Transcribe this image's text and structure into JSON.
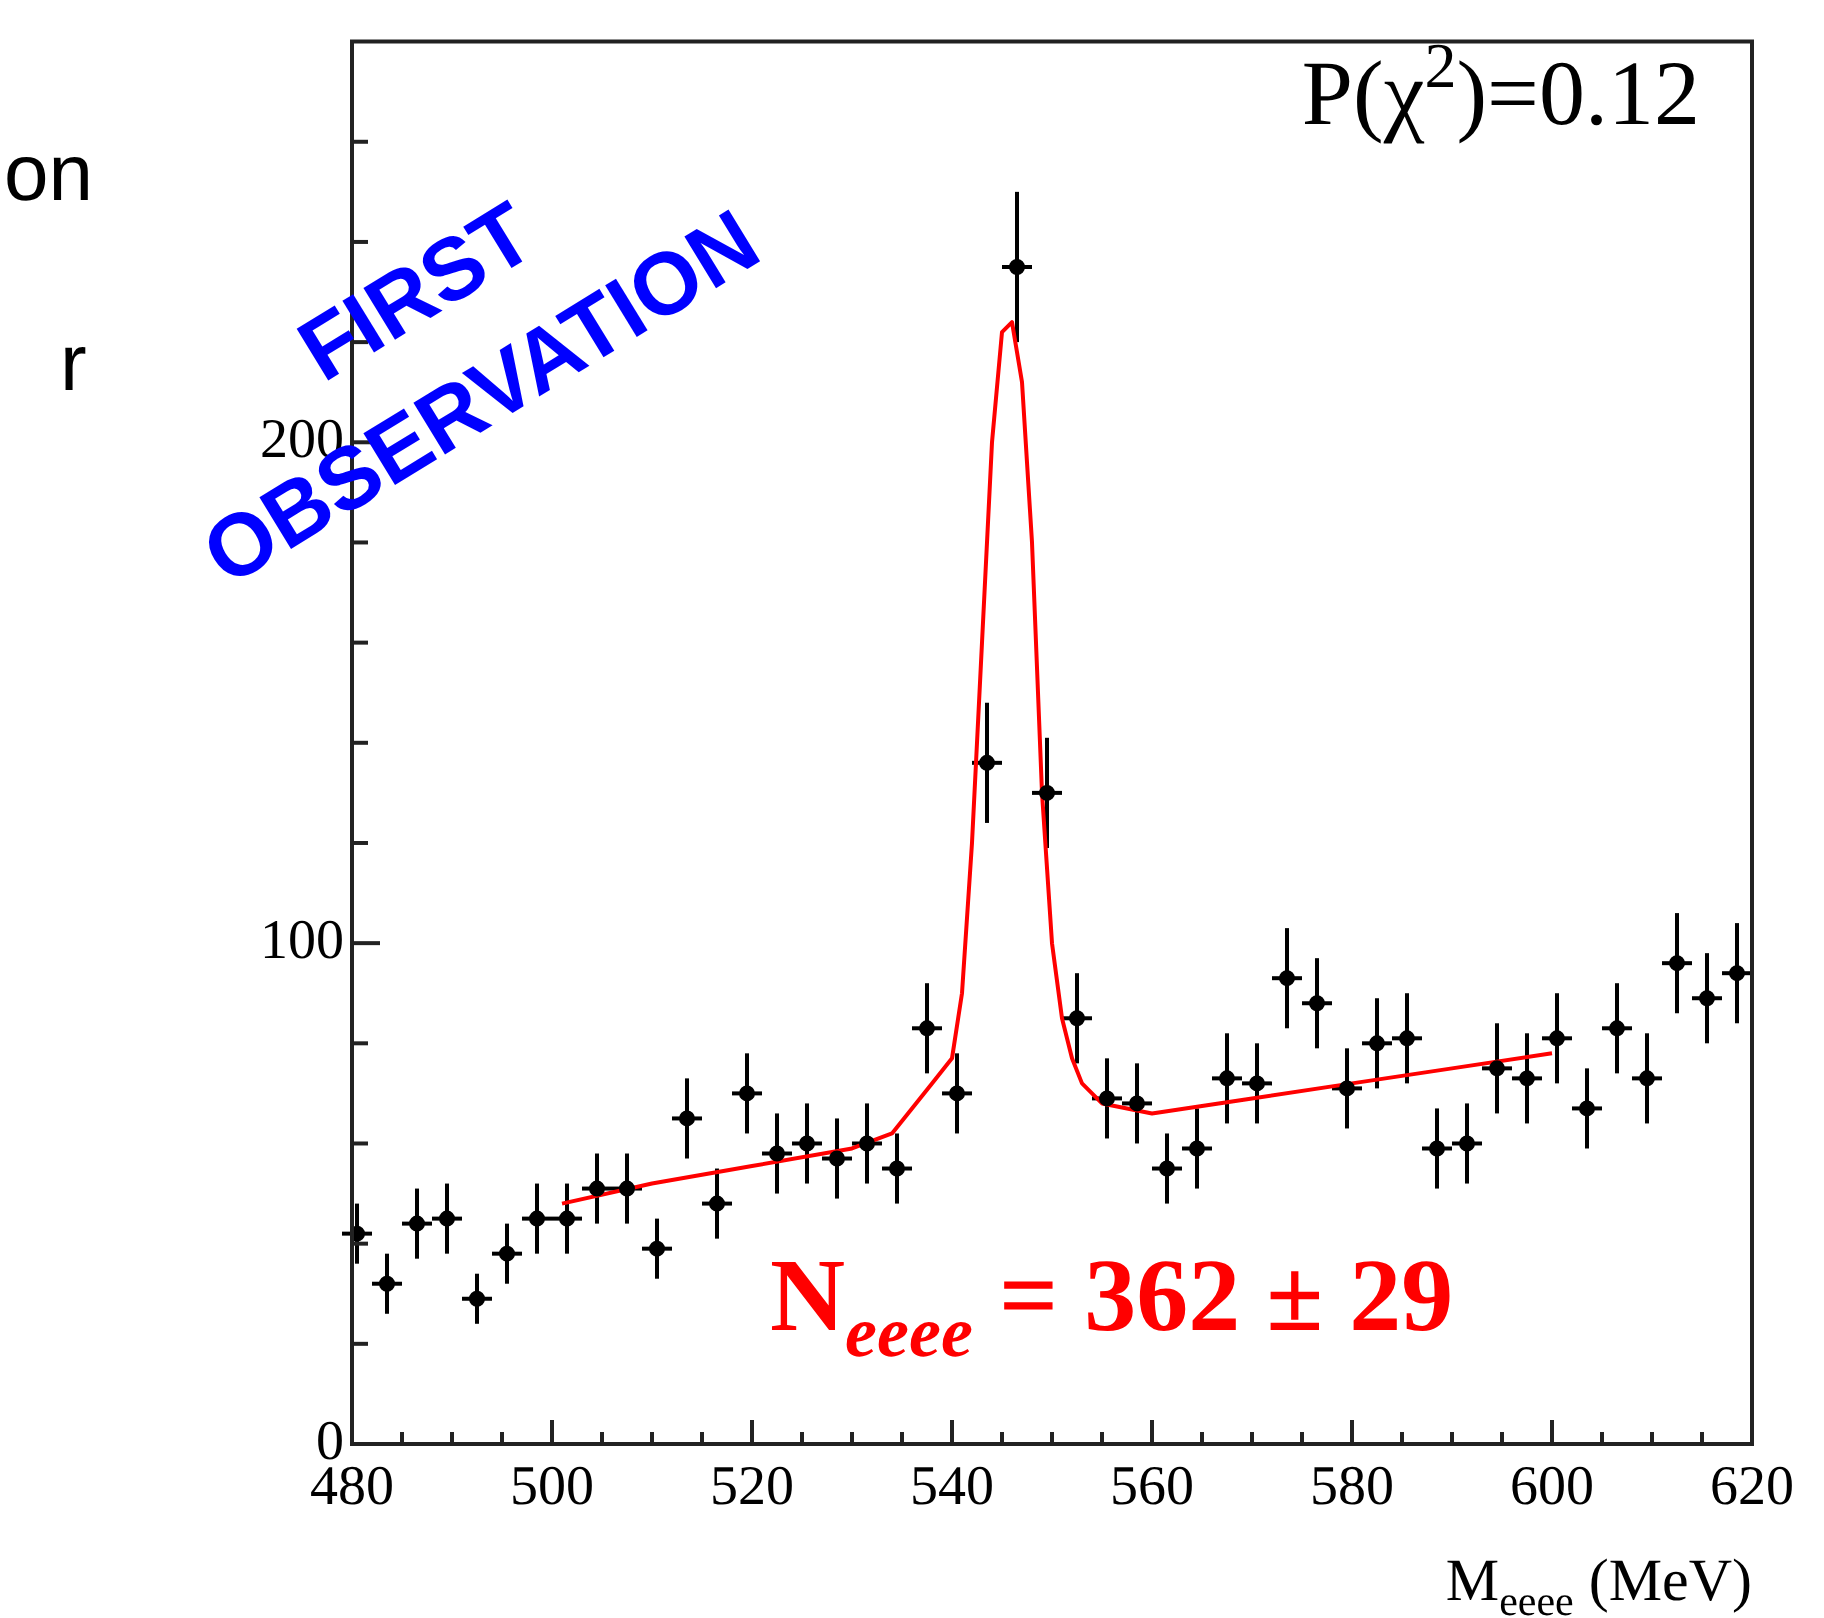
{
  "chart_data": {
    "type": "scatter",
    "xlabel": "M$_{eeee}$ (MeV)",
    "annotations": [
      "P(χ$^{2}$)=0.12",
      "N$_{eeee}$ = 362 ± 29",
      "FIRST\nOBSERVATION",
      "on",
      "r"
    ],
    "xlim": [
      480,
      620
    ],
    "xticks": [
      480,
      {
        "value": 485,
        "label": null
      },
      {
        "value": 490,
        "label": null
      },
      {
        "value": 495,
        "label": null
      },
      500,
      {
        "value": 505,
        "label": null
      },
      {
        "value": 510,
        "label": null
      },
      {
        "value": 515,
        "label": null
      },
      520,
      {
        "value": 525,
        "label": null
      },
      {
        "value": 530,
        "label": null
      },
      {
        "value": 535,
        "label": null
      },
      540,
      {
        "value": 545,
        "label": null
      },
      {
        "value": 550,
        "label": null
      },
      {
        "value": 555,
        "label": null
      },
      560,
      {
        "value": 565,
        "label": null
      },
      {
        "value": 570,
        "label": null
      },
      {
        "value": 575,
        "label": null
      },
      580,
      {
        "value": 585,
        "label": null
      },
      {
        "value": 590,
        "label": null
      },
      {
        "value": 595,
        "label": null
      },
      600,
      {
        "value": 605,
        "label": null
      },
      {
        "value": 610,
        "label": null
      },
      {
        "value": 615,
        "label": null
      },
      620
    ],
    "ylim": [
      0,
      280
    ],
    "yticks": [
      0,
      {
        "value": 20,
        "label": null
      },
      {
        "value": 40,
        "label": null
      },
      {
        "value": 60,
        "label": null
      },
      {
        "value": 80,
        "label": null
      },
      100,
      {
        "value": 120,
        "label": null
      },
      {
        "value": 140,
        "label": null
      },
      {
        "value": 160,
        "label": null
      },
      {
        "value": 180,
        "label": null
      },
      200,
      {
        "value": 220,
        "label": null
      },
      {
        "value": 240,
        "label": null
      },
      {
        "value": 260,
        "label": null
      }
    ],
    "grid": false,
    "legend": false,
    "marker": "circle",
    "series": [
      {
        "color": "#000000",
        "x": [
          480.5,
          483.5,
          486.5,
          489.5,
          492.5,
          495.5,
          498.5,
          501.5,
          504.5,
          507.5,
          510.5,
          513.5,
          516.5,
          519.5,
          522.5,
          525.5,
          528.5,
          531.5,
          534.5,
          537.5,
          540.5,
          543.5,
          546.5,
          549.5,
          552.5,
          555.5,
          558.5,
          561.5,
          564.5,
          567.5,
          570.5,
          573.5,
          576.5,
          579.5,
          582.5,
          585.5,
          588.5,
          591.5,
          594.5,
          597.5,
          600.5,
          603.5,
          606.5,
          609.5,
          612.5,
          615.5,
          618.5
        ],
        "values": [
          42,
          32,
          44,
          45,
          29,
          38,
          45,
          45,
          51,
          51,
          39,
          65,
          48,
          70,
          58,
          60,
          57,
          60,
          55,
          83,
          70,
          136,
          235,
          130,
          85,
          69,
          68,
          55,
          59,
          73,
          72,
          93,
          88,
          71,
          80,
          81,
          59,
          60,
          75,
          73,
          81,
          67,
          83,
          73,
          96,
          89,
          94
        ],
        "errors": [
          6,
          6,
          7,
          7,
          5,
          6,
          7,
          7,
          7,
          7,
          6,
          8,
          7,
          8,
          8,
          8,
          8,
          8,
          7,
          9,
          8,
          12,
          15,
          11,
          9,
          8,
          8,
          7,
          8,
          9,
          8,
          10,
          9,
          8,
          9,
          9,
          8,
          8,
          9,
          9,
          9,
          8,
          9,
          9,
          10,
          9,
          10
        ],
        "xerrors": [
          1.5,
          1.5,
          1.5,
          1.5,
          1.5,
          1.5,
          1.5,
          1.5,
          1.5,
          1.5,
          1.5,
          1.5,
          1.5,
          1.5,
          1.5,
          1.5,
          1.5,
          1.5,
          1.5,
          1.5,
          1.5,
          1.5,
          1.5,
          1.5,
          1.5,
          1.5,
          1.5,
          1.5,
          1.5,
          1.5,
          1.5,
          1.5,
          1.5,
          1.5,
          1.5,
          1.5,
          1.5,
          1.5,
          1.5,
          1.5,
          1.5,
          1.5,
          1.5,
          1.5,
          1.5,
          1.5,
          1.5
        ]
      },
      {
        "type": "line",
        "color": "#ff0000",
        "marker": "none",
        "x": [
          501,
          510,
          520,
          530,
          534,
          538,
          540,
          541,
          542,
          543,
          544,
          545,
          546,
          547,
          548,
          549,
          550,
          551,
          552,
          553,
          555,
          560,
          570,
          580,
          590,
          600
        ],
        "values": [
          48,
          52,
          55.5,
          59,
          62,
          72,
          77,
          90,
          120,
          160,
          200,
          222,
          224,
          212,
          180,
          130,
          100,
          85,
          77,
          72,
          68,
          66,
          69,
          72,
          75,
          78
        ]
      }
    ]
  }
}
